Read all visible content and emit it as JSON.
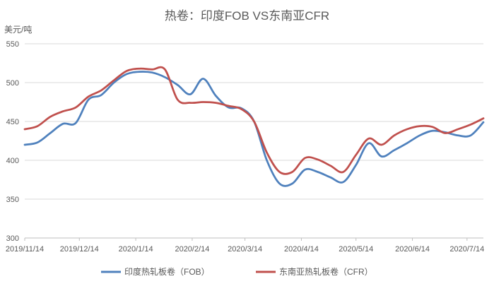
{
  "chart_data": {
    "type": "line",
    "title": "热卷：印度FOB VS东南亚CFR",
    "ylabel": "美元/吨",
    "xlabel": "",
    "ylim": [
      300,
      550
    ],
    "yticks": [
      300,
      350,
      400,
      450,
      500,
      550
    ],
    "xticks": [
      "2019/11/14",
      "2019/12/14",
      "2020/1/14",
      "2020/2/14",
      "2020/3/14",
      "2020/4/14",
      "2020/5/14",
      "2020/6/14",
      "2020/7/14"
    ],
    "grid": "horizontal",
    "legend_position": "bottom",
    "x": [
      "2019/11/14",
      "2019/11/21",
      "2019/11/28",
      "2019/12/5",
      "2019/12/12",
      "2019/12/19",
      "2019/12/26",
      "2020/1/2",
      "2020/1/9",
      "2020/1/16",
      "2020/1/23",
      "2020/1/30",
      "2020/2/6",
      "2020/2/13",
      "2020/2/20",
      "2020/2/27",
      "2020/3/5",
      "2020/3/12",
      "2020/3/19",
      "2020/3/26",
      "2020/4/2",
      "2020/4/9",
      "2020/4/16",
      "2020/4/23",
      "2020/4/30",
      "2020/5/7",
      "2020/5/14",
      "2020/5/21",
      "2020/5/28",
      "2020/6/4",
      "2020/6/11",
      "2020/6/18",
      "2020/6/25",
      "2020/7/2",
      "2020/7/9",
      "2020/7/16",
      "2020/7/23"
    ],
    "series": [
      {
        "name": "印度热轧板卷（FOB）",
        "color": "#4f81bd",
        "values": [
          420,
          423,
          435,
          447,
          448,
          478,
          484,
          500,
          511,
          514,
          513,
          507,
          497,
          485,
          505,
          483,
          468,
          467,
          450,
          400,
          370,
          370,
          388,
          385,
          378,
          372,
          394,
          422,
          405,
          413,
          422,
          432,
          438,
          436,
          432,
          432,
          449
        ]
      },
      {
        "name": "东南亚热轧板卷（CFR）",
        "color": "#c0504d",
        "values": [
          440,
          444,
          456,
          463,
          468,
          482,
          490,
          503,
          515,
          518,
          517,
          517,
          478,
          474,
          475,
          474,
          470,
          466,
          450,
          410,
          385,
          385,
          403,
          401,
          393,
          385,
          407,
          428,
          420,
          432,
          440,
          444,
          443,
          435,
          440,
          446,
          454
        ]
      }
    ]
  }
}
